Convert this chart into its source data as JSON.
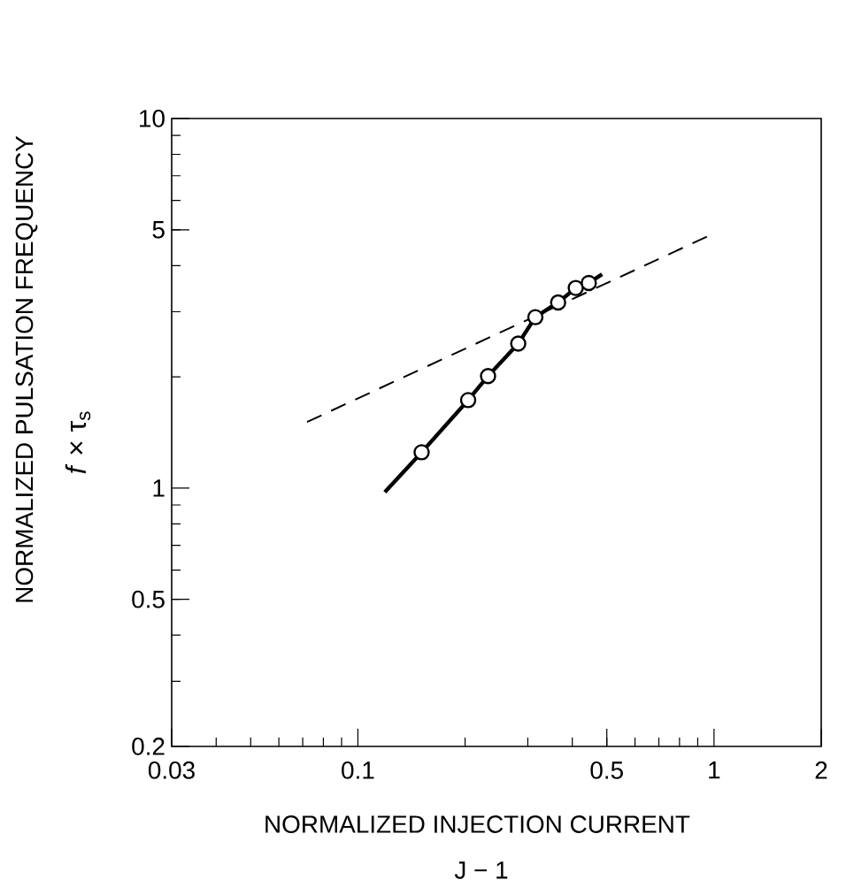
{
  "chart_data": {
    "type": "line",
    "xlabel": "NORMALIZED INJECTION CURRENT",
    "ylabel": "NORMALIZED PULSATION FREQUENCY",
    "annotations": [
      "J − 1",
      "*f* × τ$_{s}$"
    ],
    "log": "xy",
    "xlim": [
      0.03,
      2
    ],
    "xticks": [
      0.03,
      0.1,
      0.5,
      1,
      2
    ],
    "ylim": [
      0.2,
      10
    ],
    "yticks": [
      0.2,
      0.5,
      1,
      5,
      10
    ],
    "grid": false,
    "series": [
      {
        "color": "#000000",
        "line_style": "solid",
        "marker": "none",
        "x": [
          0.119,
          0.151,
          0.204,
          0.232,
          0.282,
          0.315,
          0.365,
          0.409,
          0.445,
          0.485
        ],
        "values": [
          0.975,
          1.25,
          1.73,
          2.01,
          2.46,
          2.9,
          3.18,
          3.48,
          3.59,
          3.79
        ]
      },
      {
        "type": "scatter",
        "color": "#000000",
        "marker": "circle",
        "x": [
          0.151,
          0.204,
          0.232,
          0.282,
          0.315,
          0.365,
          0.409,
          0.445
        ],
        "values": [
          1.25,
          1.73,
          2.01,
          2.46,
          2.9,
          3.18,
          3.48,
          3.59
        ]
      },
      {
        "color": "#000000",
        "line_style": "dashed",
        "marker": "none",
        "x": [
          0.072,
          0.96
        ],
        "values": [
          1.51,
          4.8
        ]
      }
    ]
  }
}
